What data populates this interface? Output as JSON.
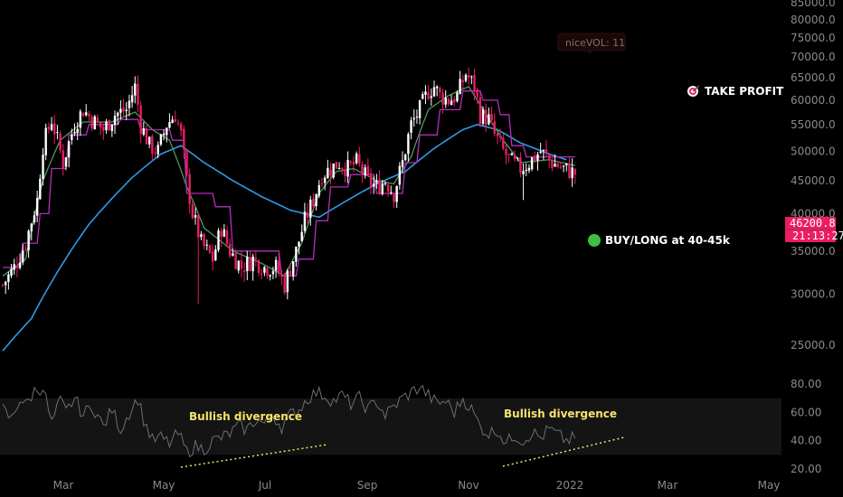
{
  "chart_data": {
    "type": "candlestick",
    "price_axis": {
      "scale": "log",
      "ticks": [
        25000,
        30000,
        35000,
        40000,
        45000,
        50000,
        55000,
        60000,
        65000,
        70000,
        75000,
        80000,
        85000
      ],
      "tick_labels": [
        "25000.0",
        "30000.0",
        "35000.0",
        "40000.0",
        "45000.0",
        "50000.0",
        "55000.0",
        "60000.0",
        "65000.0",
        "70000.0",
        "75000.0",
        "80000.0",
        "85000.0"
      ]
    },
    "time_axis": {
      "labels": [
        "Mar",
        "May",
        "Jul",
        "Sep",
        "Nov",
        "2022",
        "Mar",
        "May"
      ]
    },
    "anchors": [
      [
        0,
        31000
      ],
      [
        4,
        33000
      ],
      [
        8,
        36000
      ],
      [
        12,
        42000
      ],
      [
        14,
        51000
      ],
      [
        17,
        56000
      ],
      [
        21,
        48000
      ],
      [
        25,
        55000
      ],
      [
        28,
        58000
      ],
      [
        31,
        56000
      ],
      [
        35,
        54000
      ],
      [
        39,
        57000
      ],
      [
        43,
        58000
      ],
      [
        46,
        63000
      ],
      [
        48,
        55000
      ],
      [
        51,
        51000
      ],
      [
        54,
        50000
      ],
      [
        57,
        55000
      ],
      [
        60,
        57000
      ],
      [
        62,
        53000
      ],
      [
        64,
        45000
      ],
      [
        66,
        40000
      ],
      [
        69,
        36000
      ],
      [
        73,
        34000
      ],
      [
        76,
        38000
      ],
      [
        79,
        35000
      ],
      [
        83,
        33000
      ],
      [
        87,
        34000
      ],
      [
        91,
        33000
      ],
      [
        95,
        33000
      ],
      [
        98,
        31000
      ],
      [
        102,
        35000
      ],
      [
        105,
        39000
      ],
      [
        108,
        42000
      ],
      [
        111,
        46000
      ],
      [
        114,
        47000
      ],
      [
        117,
        48000
      ],
      [
        120,
        47000
      ],
      [
        123,
        48000
      ],
      [
        127,
        45000
      ],
      [
        130,
        44000
      ],
      [
        133,
        45000
      ],
      [
        136,
        43000
      ],
      [
        139,
        48000
      ],
      [
        142,
        55000
      ],
      [
        145,
        58000
      ],
      [
        148,
        62000
      ],
      [
        150,
        63000
      ],
      [
        152,
        61000
      ],
      [
        155,
        60000
      ],
      [
        158,
        61000
      ],
      [
        161,
        66000
      ],
      [
        164,
        63000
      ],
      [
        166,
        57000
      ],
      [
        169,
        56000
      ],
      [
        171,
        53000
      ],
      [
        174,
        50000
      ],
      [
        177,
        48000
      ],
      [
        180,
        47000
      ],
      [
        183,
        48000
      ],
      [
        187,
        50000
      ],
      [
        191,
        48000
      ],
      [
        195,
        47000
      ],
      [
        199,
        46200
      ]
    ],
    "lines": [
      {
        "name": "blue",
        "color": "#2f9be8",
        "anchors": [
          [
            0,
            24500
          ],
          [
            10,
            27500
          ],
          [
            20,
            33000
          ],
          [
            30,
            38500
          ],
          [
            45,
            45500
          ],
          [
            55,
            49500
          ],
          [
            62,
            51000
          ],
          [
            70,
            48000
          ],
          [
            80,
            45000
          ],
          [
            90,
            42500
          ],
          [
            100,
            40500
          ],
          [
            110,
            39500
          ],
          [
            120,
            42000
          ],
          [
            130,
            44500
          ],
          [
            140,
            46500
          ],
          [
            150,
            50500
          ],
          [
            160,
            54000
          ],
          [
            165,
            55000
          ],
          [
            172,
            54000
          ],
          [
            180,
            51500
          ],
          [
            190,
            49500
          ],
          [
            196,
            48500
          ]
        ]
      },
      {
        "name": "green",
        "color": "#4c9a57",
        "anchors": [
          [
            0,
            32000
          ],
          [
            8,
            34000
          ],
          [
            14,
            45000
          ],
          [
            20,
            52000
          ],
          [
            28,
            55500
          ],
          [
            38,
            55500
          ],
          [
            46,
            57500
          ],
          [
            52,
            54000
          ],
          [
            58,
            52000
          ],
          [
            64,
            44000
          ],
          [
            70,
            38000
          ],
          [
            80,
            35000
          ],
          [
            90,
            33500
          ],
          [
            98,
            32000
          ],
          [
            104,
            36000
          ],
          [
            110,
            43000
          ],
          [
            116,
            46500
          ],
          [
            122,
            47000
          ],
          [
            130,
            45000
          ],
          [
            136,
            44500
          ],
          [
            142,
            49000
          ],
          [
            148,
            58000
          ],
          [
            155,
            61000
          ],
          [
            162,
            63000
          ],
          [
            168,
            57000
          ],
          [
            174,
            52000
          ],
          [
            180,
            48000
          ],
          [
            190,
            48500
          ],
          [
            199,
            47500
          ]
        ]
      },
      {
        "name": "purple",
        "color": "#b42fb8",
        "step": true,
        "anchors": [
          [
            0,
            33000
          ],
          [
            6,
            33000
          ],
          [
            7,
            36000
          ],
          [
            12,
            36000
          ],
          [
            13,
            40000
          ],
          [
            16,
            40000
          ],
          [
            17,
            47000
          ],
          [
            22,
            47000
          ],
          [
            23,
            53000
          ],
          [
            29,
            53000
          ],
          [
            30,
            55000
          ],
          [
            40,
            55000
          ],
          [
            41,
            56000
          ],
          [
            47,
            56000
          ],
          [
            48,
            54000
          ],
          [
            58,
            54000
          ],
          [
            59,
            52000
          ],
          [
            63,
            52000
          ],
          [
            64,
            43000
          ],
          [
            73,
            43000
          ],
          [
            74,
            41000
          ],
          [
            79,
            41000
          ],
          [
            80,
            35000
          ],
          [
            96,
            35000
          ],
          [
            97,
            32000
          ],
          [
            102,
            32000
          ],
          [
            103,
            34000
          ],
          [
            108,
            34000
          ],
          [
            109,
            39000
          ],
          [
            113,
            39000
          ],
          [
            114,
            44000
          ],
          [
            120,
            44000
          ],
          [
            121,
            46000
          ],
          [
            129,
            46000
          ],
          [
            130,
            43000
          ],
          [
            139,
            43000
          ],
          [
            140,
            48000
          ],
          [
            144,
            48000
          ],
          [
            145,
            53000
          ],
          [
            151,
            53000
          ],
          [
            152,
            58000
          ],
          [
            159,
            58000
          ],
          [
            160,
            62000
          ],
          [
            166,
            62000
          ],
          [
            167,
            60000
          ],
          [
            172,
            60000
          ],
          [
            173,
            57000
          ],
          [
            176,
            57000
          ],
          [
            177,
            51000
          ],
          [
            181,
            51000
          ],
          [
            182,
            49000
          ],
          [
            199,
            49000
          ]
        ]
      }
    ],
    "indicator": {
      "ticks": [
        20,
        40,
        60,
        80
      ],
      "tick_labels": [
        "20.00",
        "40.00",
        "60.00",
        "80.00"
      ],
      "band": [
        30,
        70
      ],
      "anchors": [
        [
          0,
          62
        ],
        [
          3,
          55
        ],
        [
          6,
          70
        ],
        [
          8,
          65
        ],
        [
          11,
          75
        ],
        [
          14,
          78
        ],
        [
          17,
          52
        ],
        [
          20,
          68
        ],
        [
          22,
          60
        ],
        [
          25,
          70
        ],
        [
          28,
          58
        ],
        [
          31,
          65
        ],
        [
          35,
          50
        ],
        [
          38,
          62
        ],
        [
          41,
          48
        ],
        [
          44,
          60
        ],
        [
          47,
          70
        ],
        [
          49,
          55
        ],
        [
          52,
          40
        ],
        [
          55,
          42
        ],
        [
          58,
          38
        ],
        [
          61,
          45
        ],
        [
          64,
          32
        ],
        [
          67,
          36
        ],
        [
          70,
          34
        ],
        [
          73,
          40
        ],
        [
          76,
          42
        ],
        [
          79,
          45
        ],
        [
          82,
          50
        ],
        [
          85,
          48
        ],
        [
          88,
          55
        ],
        [
          91,
          52
        ],
        [
          94,
          58
        ],
        [
          97,
          50
        ],
        [
          100,
          58
        ],
        [
          103,
          62
        ],
        [
          106,
          70
        ],
        [
          109,
          74
        ],
        [
          112,
          72
        ],
        [
          115,
          68
        ],
        [
          118,
          72
        ],
        [
          121,
          66
        ],
        [
          124,
          70
        ],
        [
          127,
          62
        ],
        [
          130,
          68
        ],
        [
          133,
          58
        ],
        [
          136,
          64
        ],
        [
          139,
          70
        ],
        [
          142,
          74
        ],
        [
          145,
          78
        ],
        [
          148,
          72
        ],
        [
          151,
          66
        ],
        [
          154,
          68
        ],
        [
          157,
          60
        ],
        [
          160,
          70
        ],
        [
          163,
          62
        ],
        [
          166,
          50
        ],
        [
          169,
          45
        ],
        [
          172,
          48
        ],
        [
          175,
          38
        ],
        [
          178,
          44
        ],
        [
          181,
          40
        ],
        [
          184,
          46
        ],
        [
          187,
          42
        ],
        [
          190,
          48
        ],
        [
          193,
          44
        ],
        [
          196,
          40
        ],
        [
          199,
          42
        ]
      ]
    },
    "current_price": "46200.8",
    "current_time": "21:13:27",
    "annotations": [
      {
        "text": "TAKE PROFIT",
        "icon": "target-icon"
      },
      {
        "text": "BUY/LONG at 40-45k",
        "icon": "green-circle-icon"
      },
      {
        "text": "Bullish divergence"
      },
      {
        "text": "Bullish divergence"
      },
      {
        "text": "niceVOL: 11"
      }
    ]
  },
  "colors": {
    "background": "#000000",
    "candle_up": "#ffffff",
    "candle_down": "#e91e63",
    "price_label_bg": "#e91e63",
    "tooltip_text": "#8a6a6a",
    "annotation_yellow": "#f5e36a"
  }
}
